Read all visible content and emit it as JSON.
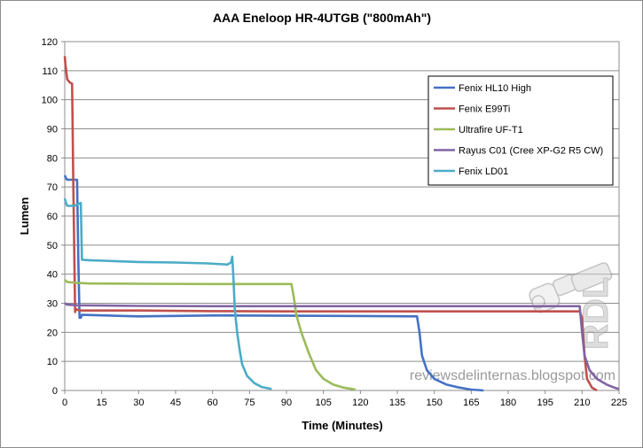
{
  "chart_data": {
    "type": "line",
    "title": "AAA Eneloop HR-4UTGB (\"800mAh\")",
    "xlabel": "Time (Minutes)",
    "ylabel": "Lumen",
    "xlim": [
      0,
      225
    ],
    "ylim": [
      0,
      120
    ],
    "xticks": [
      0,
      15,
      30,
      45,
      60,
      75,
      90,
      105,
      120,
      135,
      150,
      165,
      180,
      195,
      210,
      225
    ],
    "yticks": [
      0,
      10,
      20,
      30,
      40,
      50,
      60,
      70,
      80,
      90,
      100,
      110,
      120
    ],
    "grid": {
      "horizontal": true,
      "vertical": false
    },
    "legend_position": "top-right",
    "series": [
      {
        "name": "Fenix HL10 High",
        "color": "#4472C4",
        "points": [
          [
            0,
            74
          ],
          [
            0.5,
            73
          ],
          [
            1,
            72.5
          ],
          [
            3,
            72.5
          ],
          [
            5,
            72.5
          ],
          [
            5.5,
            45
          ],
          [
            6,
            25
          ],
          [
            6.5,
            25
          ],
          [
            7,
            26
          ],
          [
            30,
            25.5
          ],
          [
            60,
            25.8
          ],
          [
            90,
            25.7
          ],
          [
            120,
            25.6
          ],
          [
            143,
            25.5
          ],
          [
            144,
            20
          ],
          [
            145,
            12
          ],
          [
            147,
            7
          ],
          [
            150,
            4
          ],
          [
            155,
            2
          ],
          [
            160,
            1
          ],
          [
            165,
            0.3
          ],
          [
            170,
            0
          ]
        ]
      },
      {
        "name": "Fenix E99Ti",
        "color": "#C0504D",
        "points": [
          [
            0,
            115
          ],
          [
            0.3,
            112
          ],
          [
            1,
            107
          ],
          [
            2,
            106
          ],
          [
            3,
            105.5
          ],
          [
            3.5,
            70
          ],
          [
            4,
            40
          ],
          [
            4.2,
            27
          ],
          [
            4.5,
            28
          ],
          [
            6,
            27.5
          ],
          [
            30,
            27.5
          ],
          [
            60,
            27.3
          ],
          [
            90,
            27.2
          ],
          [
            120,
            27.2
          ],
          [
            150,
            27.2
          ],
          [
            180,
            27.2
          ],
          [
            205,
            27.2
          ],
          [
            209,
            27.2
          ],
          [
            210,
            25
          ],
          [
            211,
            12
          ],
          [
            212,
            4
          ],
          [
            214,
            1
          ],
          [
            216,
            0
          ]
        ]
      },
      {
        "name": "Ultrafire UF-T1",
        "color": "#9BBB59",
        "points": [
          [
            0,
            38
          ],
          [
            1,
            37.3
          ],
          [
            5,
            37
          ],
          [
            10,
            36.8
          ],
          [
            30,
            36.7
          ],
          [
            60,
            36.6
          ],
          [
            80,
            36.6
          ],
          [
            92,
            36.6
          ],
          [
            93,
            32
          ],
          [
            94,
            26
          ],
          [
            96,
            20
          ],
          [
            99,
            13
          ],
          [
            102,
            7
          ],
          [
            105,
            4
          ],
          [
            109,
            2
          ],
          [
            113,
            1
          ],
          [
            118,
            0.3
          ]
        ]
      },
      {
        "name": "Rayus C01 (Cree XP-G2 R5 CW)",
        "color": "#8064A2",
        "points": [
          [
            0,
            30
          ],
          [
            1,
            29.5
          ],
          [
            5,
            29.3
          ],
          [
            30,
            29.1
          ],
          [
            60,
            29
          ],
          [
            90,
            29
          ],
          [
            120,
            29
          ],
          [
            150,
            29
          ],
          [
            180,
            29
          ],
          [
            200,
            29
          ],
          [
            209,
            29
          ],
          [
            210,
            20
          ],
          [
            211,
            12
          ],
          [
            213,
            7
          ],
          [
            216,
            4
          ],
          [
            220,
            2
          ],
          [
            223,
            1
          ],
          [
            225,
            0.5
          ]
        ]
      },
      {
        "name": "Fenix LD01",
        "color": "#4BACC6",
        "points": [
          [
            0,
            66
          ],
          [
            0.5,
            64.5
          ],
          [
            1,
            63.5
          ],
          [
            4,
            63.5
          ],
          [
            5,
            64
          ],
          [
            6.5,
            64.5
          ],
          [
            7,
            45
          ],
          [
            10,
            44.8
          ],
          [
            20,
            44.5
          ],
          [
            30,
            44.2
          ],
          [
            45,
            44
          ],
          [
            58,
            43.7
          ],
          [
            66,
            43.3
          ],
          [
            67.5,
            44
          ],
          [
            68,
            46
          ],
          [
            68.5,
            38
          ],
          [
            69,
            28
          ],
          [
            70,
            20
          ],
          [
            71,
            14
          ],
          [
            72,
            9
          ],
          [
            74,
            5
          ],
          [
            77,
            2.5
          ],
          [
            80,
            1.2
          ],
          [
            84,
            0.5
          ]
        ]
      }
    ]
  },
  "watermark": {
    "logo_text": "RDL",
    "text": "reviewsdelinternas.blogspot.com"
  }
}
